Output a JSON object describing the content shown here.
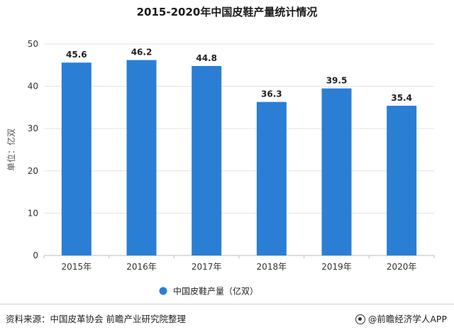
{
  "chart_data": {
    "type": "bar",
    "title": "2015-2020年中国皮鞋产量统计情况",
    "ylabel": "单位：亿双",
    "categories": [
      "2015年",
      "2016年",
      "2017年",
      "2018年",
      "2019年",
      "2020年"
    ],
    "series": [
      {
        "name": "中国皮鞋产量（亿双）",
        "values": [
          45.6,
          46.2,
          44.8,
          36.3,
          39.5,
          35.4
        ],
        "color": "#2a7fd4"
      }
    ],
    "ylim": [
      0,
      50
    ],
    "yticks": [
      0,
      10,
      20,
      30,
      40,
      50
    ],
    "grid": true,
    "legend_position": "bottom"
  },
  "footer": {
    "source": "资料来源：中国皮革协会 前瞻产业研究院整理",
    "brand": "@前瞻经济学人APP"
  },
  "icons": {
    "brand": "brand-logo-icon"
  }
}
